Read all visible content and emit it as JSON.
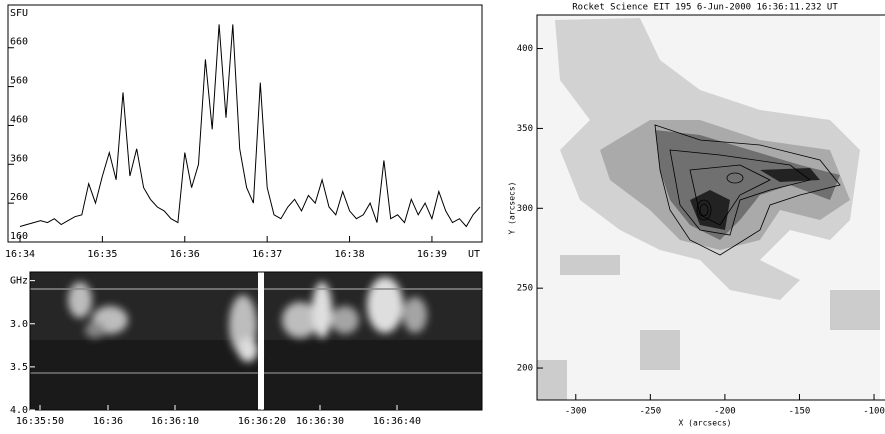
{
  "chart_data": [
    {
      "type": "line",
      "ylabel": "SFU",
      "xlabel": "UT",
      "categories": [
        "16:34",
        null,
        null,
        null,
        null,
        null,
        null,
        null,
        null,
        null,
        null,
        null,
        "16:35",
        null,
        null,
        null,
        null,
        null,
        null,
        null,
        null,
        null,
        null,
        null,
        "16:36",
        null,
        null,
        null,
        null,
        null,
        null,
        null,
        null,
        null,
        null,
        null,
        "16:37",
        null,
        null,
        null,
        null,
        null,
        null,
        null,
        null,
        null,
        null,
        null,
        "16:38",
        null,
        null,
        null,
        null,
        null,
        null,
        null,
        null,
        null,
        null,
        null,
        "16:39",
        null,
        null,
        null,
        null,
        null,
        null,
        null
      ],
      "values": [
        200,
        205,
        210,
        215,
        210,
        220,
        205,
        215,
        225,
        230,
        310,
        260,
        330,
        390,
        320,
        545,
        330,
        400,
        300,
        270,
        250,
        240,
        220,
        210,
        390,
        300,
        360,
        630,
        450,
        720,
        480,
        720,
        400,
        300,
        260,
        570,
        300,
        230,
        220,
        250,
        270,
        240,
        280,
        260,
        320,
        250,
        230,
        290,
        240,
        220,
        230,
        260,
        210,
        370,
        220,
        230,
        210,
        270,
        230,
        260,
        220,
        290,
        240,
        210,
        220,
        200,
        230,
        250
      ],
      "color": "#000000",
      "ylim": [
        160,
        770
      ],
      "yticks": [
        160,
        260,
        360,
        460,
        560,
        660
      ]
    },
    {
      "type": "spectrogram",
      "categories": [
        "16:35:50",
        "16:36",
        "16:36:10",
        "16:36:20",
        "16:36:30",
        "16:36:40"
      ],
      "ylim": [
        2.4,
        4.0
      ],
      "y_inverted": true,
      "yticks": [
        {
          "value": 2.5,
          "label": "GHz"
        },
        {
          "value": 3.0,
          "label": "3.0"
        },
        {
          "value": 3.5,
          "label": "3.5"
        },
        {
          "value": 4.0,
          "label": "4.0"
        }
      ]
    },
    {
      "type": "image",
      "title": "Rocket Science EIT 195   6-Jun-2000 16:36:11.232 UT",
      "xlabel": "X (arcsecs)",
      "ylabel": "Y (arcsecs)",
      "xlim": [
        -326,
        -96
      ],
      "ylim": [
        180,
        421
      ],
      "xticks": [
        -300,
        -250,
        -200,
        -150,
        -100
      ],
      "yticks": [
        200,
        250,
        300,
        350,
        400
      ]
    }
  ]
}
